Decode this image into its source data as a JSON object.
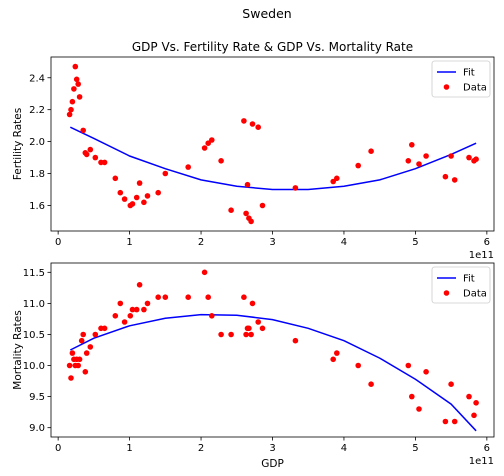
{
  "figure": {
    "suptitle": "Sweden"
  },
  "chart_data": [
    {
      "type": "scatter",
      "title": "GDP Vs. Fertility Rate & GDP Vs. Mortality Rate",
      "xlabel": "",
      "ylabel": "Fertility Rates",
      "x_offset_label": "1e11",
      "xlim": [
        -0.1,
        6.1
      ],
      "ylim": [
        1.44,
        2.53
      ],
      "xticks": [
        0,
        1,
        2,
        3,
        4,
        5,
        6
      ],
      "yticks": [
        1.6,
        1.8,
        2.0,
        2.2,
        2.4
      ],
      "ytick_labels": [
        "1.6",
        "1.8",
        "2.0",
        "2.2",
        "2.4"
      ],
      "legend_position": "top-right",
      "grid": false,
      "series": [
        {
          "name": "Fit",
          "kind": "line",
          "color": "#0000ff",
          "x": [
            0.17,
            0.5,
            1.0,
            1.5,
            2.0,
            2.5,
            3.0,
            3.5,
            4.0,
            4.5,
            5.0,
            5.5,
            5.85
          ],
          "y": [
            2.09,
            2.02,
            1.91,
            1.83,
            1.76,
            1.72,
            1.7,
            1.7,
            1.72,
            1.76,
            1.83,
            1.92,
            1.99
          ]
        },
        {
          "name": "Data",
          "kind": "scatter",
          "color": "#ff0000",
          "x": [
            0.16,
            0.18,
            0.2,
            0.22,
            0.24,
            0.26,
            0.28,
            0.3,
            0.35,
            0.38,
            0.4,
            0.45,
            0.52,
            0.6,
            0.65,
            0.8,
            0.87,
            0.93,
            1.01,
            1.04,
            1.1,
            1.14,
            1.2,
            1.25,
            1.4,
            1.5,
            1.82,
            2.05,
            2.1,
            2.15,
            2.28,
            2.42,
            2.6,
            2.63,
            2.65,
            2.67,
            2.7,
            2.72,
            2.8,
            2.86,
            3.32,
            3.85,
            3.9,
            4.2,
            4.38,
            4.9,
            4.95,
            5.05,
            5.15,
            5.42,
            5.5,
            5.55,
            5.75,
            5.82,
            5.85
          ],
          "y": [
            2.17,
            2.2,
            2.25,
            2.33,
            2.47,
            2.39,
            2.36,
            2.28,
            2.07,
            1.93,
            1.92,
            1.95,
            1.9,
            1.87,
            1.87,
            1.77,
            1.68,
            1.64,
            1.6,
            1.61,
            1.65,
            1.74,
            1.62,
            1.66,
            1.68,
            1.8,
            1.84,
            1.96,
            1.99,
            2.01,
            1.88,
            1.57,
            2.13,
            1.55,
            1.73,
            1.52,
            1.5,
            2.11,
            2.09,
            1.6,
            1.71,
            1.75,
            1.77,
            1.85,
            1.94,
            1.88,
            1.98,
            1.86,
            1.91,
            1.78,
            1.91,
            1.76,
            1.9,
            1.88,
            1.89
          ]
        }
      ]
    },
    {
      "type": "scatter",
      "title": "",
      "xlabel": "GDP",
      "ylabel": "Mortality Rates",
      "x_offset_label": "1e11",
      "xlim": [
        -0.1,
        6.1
      ],
      "ylim": [
        8.85,
        11.65
      ],
      "xticks": [
        0,
        1,
        2,
        3,
        4,
        5,
        6
      ],
      "yticks": [
        9.0,
        9.5,
        10.0,
        10.5,
        11.0,
        11.5
      ],
      "ytick_labels": [
        "9.0",
        "9.5",
        "10.0",
        "10.5",
        "11.0",
        "11.5"
      ],
      "legend_position": "top-right",
      "grid": false,
      "series": [
        {
          "name": "Fit",
          "kind": "line",
          "color": "#0000ff",
          "x": [
            0.17,
            0.5,
            1.0,
            1.5,
            2.0,
            2.5,
            3.0,
            3.5,
            4.0,
            4.5,
            5.0,
            5.5,
            5.85
          ],
          "y": [
            10.25,
            10.44,
            10.64,
            10.76,
            10.82,
            10.81,
            10.74,
            10.6,
            10.4,
            10.12,
            9.78,
            9.38,
            8.95
          ]
        },
        {
          "name": "Data",
          "kind": "scatter",
          "color": "#ff0000",
          "x": [
            0.16,
            0.18,
            0.2,
            0.22,
            0.24,
            0.26,
            0.28,
            0.3,
            0.33,
            0.35,
            0.38,
            0.4,
            0.45,
            0.52,
            0.6,
            0.65,
            0.8,
            0.87,
            0.93,
            1.01,
            1.04,
            1.1,
            1.14,
            1.2,
            1.25,
            1.4,
            1.5,
            1.82,
            2.05,
            2.1,
            2.15,
            2.28,
            2.42,
            2.6,
            2.63,
            2.65,
            2.67,
            2.7,
            2.72,
            2.8,
            2.86,
            3.32,
            3.85,
            3.9,
            4.2,
            4.38,
            4.9,
            4.95,
            5.05,
            5.15,
            5.42,
            5.5,
            5.55,
            5.75,
            5.82,
            5.85
          ],
          "y": [
            10.0,
            9.8,
            10.2,
            10.1,
            10.0,
            10.1,
            10.0,
            10.1,
            10.4,
            10.5,
            9.9,
            10.2,
            10.3,
            10.5,
            10.6,
            10.6,
            10.8,
            11.0,
            10.7,
            10.8,
            10.9,
            10.9,
            11.3,
            10.9,
            11.0,
            11.1,
            11.1,
            11.1,
            11.5,
            11.1,
            10.8,
            10.5,
            10.5,
            11.1,
            10.5,
            10.6,
            10.6,
            10.5,
            11.0,
            10.7,
            10.6,
            10.4,
            10.1,
            10.2,
            10.0,
            9.7,
            10.0,
            9.5,
            9.3,
            9.9,
            9.1,
            9.7,
            9.1,
            9.5,
            9.2,
            9.4
          ]
        }
      ]
    }
  ]
}
